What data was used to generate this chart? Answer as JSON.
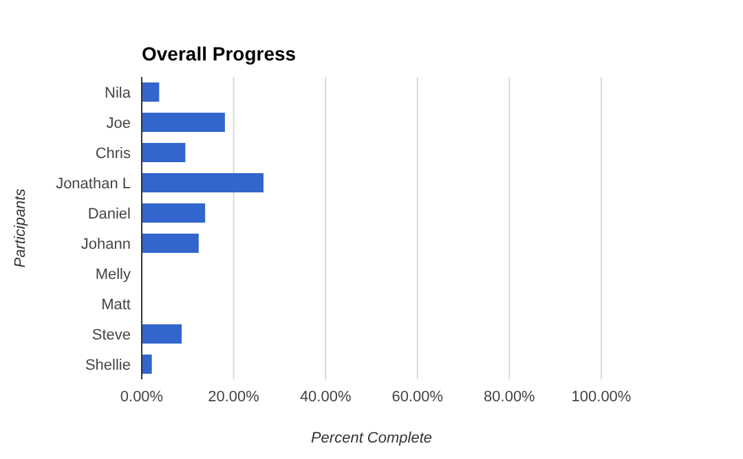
{
  "chart_data": {
    "type": "bar",
    "orientation": "horizontal",
    "title": "Overall Progress",
    "xlabel": "Percent Complete",
    "ylabel": "Participants",
    "categories": [
      "Nila",
      "Joe",
      "Chris",
      "Jonathan L",
      "Daniel",
      "Johann",
      "Melly",
      "Matt",
      "Steve",
      "Shellie"
    ],
    "values": [
      3.8,
      18.1,
      9.5,
      26.5,
      13.8,
      12.4,
      0,
      0,
      8.7,
      2.2
    ],
    "color": "#3366cc",
    "xlim": [
      0,
      100
    ],
    "xticks": [
      {
        "value": 0,
        "label": "0.00%"
      },
      {
        "value": 20,
        "label": "20.00%"
      },
      {
        "value": 40,
        "label": "40.00%"
      },
      {
        "value": 60,
        "label": "60.00%"
      },
      {
        "value": 80,
        "label": "80.00%"
      },
      {
        "value": 100,
        "label": "100.00%"
      }
    ],
    "grid": "x",
    "legend": false
  }
}
